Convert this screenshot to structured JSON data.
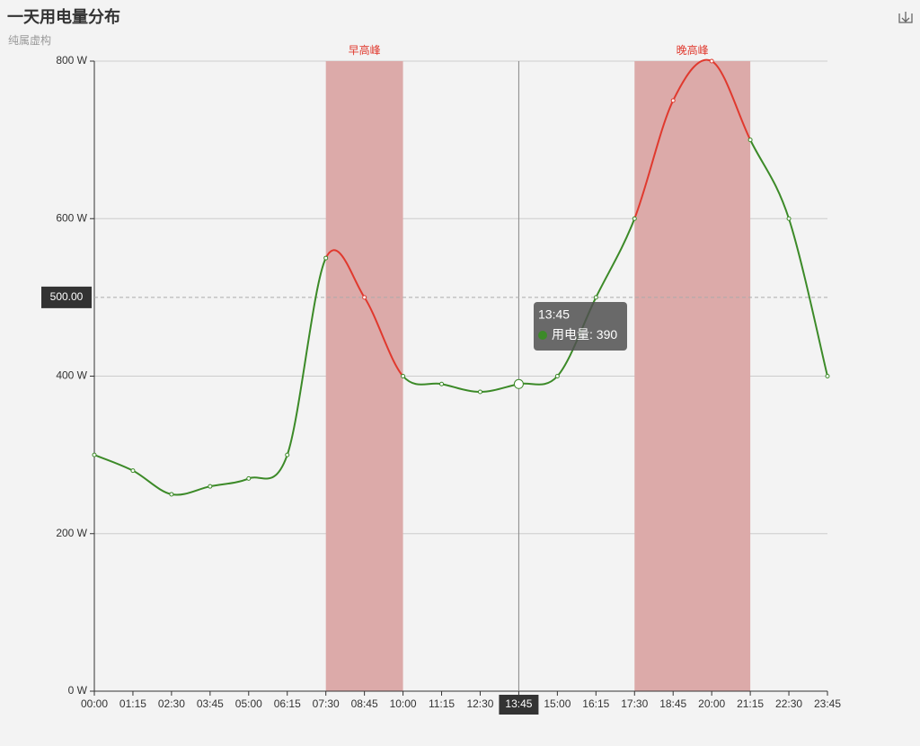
{
  "chart_data": {
    "type": "line",
    "title": "一天用电量分布",
    "subtitle": "纯属虚构",
    "categories": [
      "00:00",
      "01:15",
      "02:30",
      "03:45",
      "05:00",
      "06:15",
      "07:30",
      "08:45",
      "10:00",
      "11:15",
      "12:30",
      "13:45",
      "15:00",
      "16:15",
      "17:30",
      "18:45",
      "20:00",
      "21:15",
      "22:30",
      "23:45"
    ],
    "series": [
      {
        "name": "用电量",
        "color": "#3c8a28",
        "values": [
          300,
          280,
          250,
          260,
          270,
          300,
          550,
          500,
          400,
          390,
          380,
          390,
          400,
          500,
          600,
          750,
          800,
          700,
          600,
          400
        ]
      }
    ],
    "ylim": [
      0,
      800
    ],
    "yticks": [
      {
        "value": 0,
        "label": "0 W"
      },
      {
        "value": 200,
        "label": "200 W"
      },
      {
        "value": 400,
        "label": "400 W"
      },
      {
        "value": 600,
        "label": "600 W"
      },
      {
        "value": 800,
        "label": "800 W"
      }
    ],
    "grid": true,
    "smooth": true,
    "mark_areas": [
      {
        "name": "早高峰",
        "from": "07:30",
        "to": "10:00"
      },
      {
        "name": "晚高峰",
        "from": "17:30",
        "to": "21:15"
      }
    ],
    "mark_area_color": "#dcaaa9",
    "highlight_color": "#e0392e",
    "axis_pointer": {
      "x": "13:45",
      "y": {
        "value": 500,
        "label": "500.00"
      }
    }
  }
}
